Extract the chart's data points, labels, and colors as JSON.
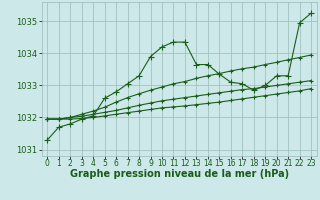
{
  "background_color": "#cce8e8",
  "grid_color": "#99bbbb",
  "line_color": "#1a5c1a",
  "xlabel": "Graphe pression niveau de la mer (hPa)",
  "xlabel_fontsize": 7.0,
  "tick_fontsize": 5.5,
  "ytick_fontsize": 6.0,
  "xlim": [
    -0.5,
    23.5
  ],
  "ylim": [
    1030.8,
    1035.6
  ],
  "yticks": [
    1031,
    1032,
    1033,
    1034,
    1035
  ],
  "xticks": [
    0,
    1,
    2,
    3,
    4,
    5,
    6,
    7,
    8,
    9,
    10,
    11,
    12,
    13,
    14,
    15,
    16,
    17,
    18,
    19,
    20,
    21,
    22,
    23
  ],
  "series": [
    [
      1031.3,
      1031.7,
      1031.8,
      1031.95,
      1032.05,
      1032.6,
      1032.8,
      1033.05,
      1033.3,
      1033.9,
      1034.2,
      1034.35,
      1034.35,
      1033.65,
      1033.65,
      1033.35,
      1033.1,
      1033.05,
      1032.85,
      1033.0,
      1033.3,
      1033.3,
      1034.95,
      1035.25
    ],
    [
      1031.95,
      1031.95,
      1032.0,
      1032.1,
      1032.2,
      1032.32,
      1032.48,
      1032.62,
      1032.74,
      1032.85,
      1032.95,
      1033.05,
      1033.12,
      1033.22,
      1033.3,
      1033.37,
      1033.45,
      1033.52,
      1033.57,
      1033.65,
      1033.72,
      1033.8,
      1033.87,
      1033.95
    ],
    [
      1031.95,
      1031.95,
      1032.0,
      1032.04,
      1032.1,
      1032.16,
      1032.22,
      1032.3,
      1032.38,
      1032.45,
      1032.52,
      1032.57,
      1032.62,
      1032.67,
      1032.72,
      1032.77,
      1032.82,
      1032.87,
      1032.9,
      1032.95,
      1033.0,
      1033.05,
      1033.1,
      1033.15
    ],
    [
      1031.95,
      1031.95,
      1031.95,
      1031.97,
      1032.0,
      1032.05,
      1032.1,
      1032.15,
      1032.2,
      1032.25,
      1032.3,
      1032.33,
      1032.36,
      1032.4,
      1032.44,
      1032.48,
      1032.53,
      1032.58,
      1032.63,
      1032.68,
      1032.73,
      1032.78,
      1032.83,
      1032.9
    ]
  ]
}
